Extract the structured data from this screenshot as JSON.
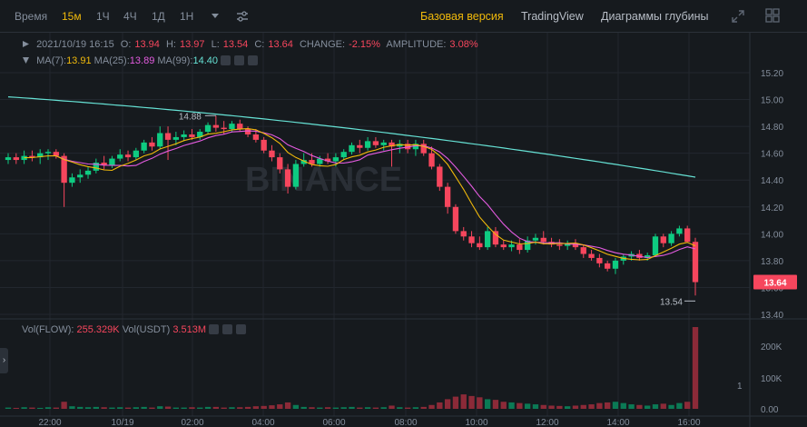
{
  "toolbar": {
    "time_label": "Время",
    "intervals": [
      "15м",
      "1Ч",
      "4Ч",
      "1Д",
      "1Н"
    ],
    "active_interval": "15м",
    "views": [
      "Базовая версия",
      "TradingView",
      "Диаграммы глубины"
    ],
    "active_view": "Базовая версия"
  },
  "ohlc": {
    "date": "2021/10/19 16:15",
    "o_label": "O:",
    "o": "13.94",
    "h_label": "H:",
    "h": "13.97",
    "l_label": "L:",
    "l": "13.54",
    "c_label": "C:",
    "c": "13.64",
    "change_label": "CHANGE:",
    "change": "-2.15%",
    "amp_label": "AMPLITUDE:",
    "amplitude": "3.08%"
  },
  "ma": {
    "ma7_label": "MA(7):",
    "ma7": "13.91",
    "ma25_label": "MA(25):",
    "ma25": "13.89",
    "ma99_label": "MA(99):",
    "ma99": "14.40"
  },
  "volume": {
    "flow_label": "Vol(FLOW):",
    "flow": "255.329K",
    "usdt_label": "Vol(USDT)",
    "usdt": "3.513M"
  },
  "watermark": "BINANCE",
  "price_axis": [
    "15.20",
    "15.00",
    "14.80",
    "14.60",
    "14.40",
    "14.20",
    "14.00",
    "13.80",
    "13.60",
    "13.40"
  ],
  "volume_axis": [
    "200K",
    "100K",
    "0.00"
  ],
  "time_axis": [
    "22:00",
    "10/19",
    "02:00",
    "04:00",
    "06:00",
    "08:00",
    "10:00",
    "12:00",
    "14:00",
    "16:00"
  ],
  "current_price": "13.64",
  "high_marker": "14.88",
  "low_marker": "13.54",
  "colors": {
    "up": "#0ecb81",
    "down": "#f6465d",
    "ma7": "#f0b90b",
    "ma25": "#e45be0",
    "ma99": "#66e2d5",
    "accent": "#f0b90b"
  },
  "chart_data": {
    "type": "candlestick",
    "ylim": [
      13.35,
      15.3
    ],
    "candles": [
      [
        14.55,
        14.6,
        14.52,
        14.57
      ],
      [
        14.57,
        14.6,
        14.52,
        14.55
      ],
      [
        14.55,
        14.62,
        14.52,
        14.58
      ],
      [
        14.58,
        14.62,
        14.54,
        14.57
      ],
      [
        14.57,
        14.63,
        14.52,
        14.6
      ],
      [
        14.6,
        14.63,
        14.55,
        14.61
      ],
      [
        14.61,
        14.63,
        14.56,
        14.58
      ],
      [
        14.58,
        14.6,
        14.2,
        14.38
      ],
      [
        14.38,
        14.45,
        14.35,
        14.42
      ],
      [
        14.42,
        14.48,
        14.38,
        14.44
      ],
      [
        14.44,
        14.5,
        14.41,
        14.47
      ],
      [
        14.47,
        14.56,
        14.45,
        14.53
      ],
      [
        14.53,
        14.58,
        14.48,
        14.51
      ],
      [
        14.51,
        14.58,
        14.49,
        14.56
      ],
      [
        14.56,
        14.63,
        14.54,
        14.59
      ],
      [
        14.59,
        14.62,
        14.54,
        14.57
      ],
      [
        14.57,
        14.64,
        14.55,
        14.62
      ],
      [
        14.62,
        14.7,
        14.6,
        14.68
      ],
      [
        14.68,
        14.72,
        14.62,
        14.65
      ],
      [
        14.65,
        14.8,
        14.63,
        14.75
      ],
      [
        14.75,
        14.8,
        14.55,
        14.7
      ],
      [
        14.7,
        14.76,
        14.66,
        14.72
      ],
      [
        14.72,
        14.77,
        14.69,
        14.74
      ],
      [
        14.74,
        14.78,
        14.7,
        14.72
      ],
      [
        14.72,
        14.78,
        14.7,
        14.76
      ],
      [
        14.76,
        14.83,
        14.74,
        14.81
      ],
      [
        14.81,
        14.88,
        14.76,
        14.79
      ],
      [
        14.79,
        14.84,
        14.74,
        14.78
      ],
      [
        14.78,
        14.84,
        14.76,
        14.82
      ],
      [
        14.82,
        14.85,
        14.76,
        14.78
      ],
      [
        14.78,
        14.8,
        14.72,
        14.74
      ],
      [
        14.74,
        14.78,
        14.68,
        14.7
      ],
      [
        14.7,
        14.72,
        14.6,
        14.62
      ],
      [
        14.62,
        14.66,
        14.54,
        14.57
      ],
      [
        14.57,
        14.6,
        14.45,
        14.48
      ],
      [
        14.48,
        14.52,
        14.3,
        14.35
      ],
      [
        14.35,
        14.55,
        14.33,
        14.52
      ],
      [
        14.52,
        14.6,
        14.5,
        14.55
      ],
      [
        14.55,
        14.6,
        14.5,
        14.52
      ],
      [
        14.52,
        14.58,
        14.5,
        14.56
      ],
      [
        14.56,
        14.6,
        14.52,
        14.54
      ],
      [
        14.54,
        14.6,
        14.5,
        14.57
      ],
      [
        14.57,
        14.63,
        14.55,
        14.61
      ],
      [
        14.61,
        14.68,
        14.59,
        14.66
      ],
      [
        14.66,
        14.7,
        14.6,
        14.64
      ],
      [
        14.64,
        14.72,
        14.62,
        14.69
      ],
      [
        14.69,
        14.72,
        14.64,
        14.66
      ],
      [
        14.66,
        14.7,
        14.62,
        14.68
      ],
      [
        14.68,
        14.7,
        14.5,
        14.65
      ],
      [
        14.65,
        14.7,
        14.6,
        14.67
      ],
      [
        14.67,
        14.7,
        14.6,
        14.63
      ],
      [
        14.63,
        14.7,
        14.58,
        14.67
      ],
      [
        14.67,
        14.7,
        14.58,
        14.6
      ],
      [
        14.6,
        14.65,
        14.48,
        14.5
      ],
      [
        14.5,
        14.52,
        14.32,
        14.35
      ],
      [
        14.35,
        14.38,
        14.15,
        14.2
      ],
      [
        14.2,
        14.22,
        14.0,
        14.02
      ],
      [
        14.02,
        14.05,
        13.95,
        13.98
      ],
      [
        13.98,
        14.02,
        13.9,
        13.93
      ],
      [
        13.93,
        13.98,
        13.88,
        13.9
      ],
      [
        13.9,
        14.05,
        13.88,
        14.02
      ],
      [
        14.02,
        14.05,
        13.9,
        13.92
      ],
      [
        13.92,
        13.95,
        13.88,
        13.9
      ],
      [
        13.9,
        13.95,
        13.87,
        13.92
      ],
      [
        13.92,
        13.96,
        13.85,
        13.88
      ],
      [
        13.88,
        13.98,
        13.86,
        13.95
      ],
      [
        13.95,
        14.0,
        13.92,
        13.97
      ],
      [
        13.97,
        14.02,
        13.92,
        13.94
      ],
      [
        13.94,
        13.97,
        13.9,
        13.92
      ],
      [
        13.92,
        13.96,
        13.88,
        13.91
      ],
      [
        13.91,
        13.95,
        13.88,
        13.93
      ],
      [
        13.93,
        13.96,
        13.88,
        13.9
      ],
      [
        13.9,
        13.92,
        13.82,
        13.85
      ],
      [
        13.85,
        13.88,
        13.8,
        13.82
      ],
      [
        13.82,
        13.85,
        13.75,
        13.78
      ],
      [
        13.78,
        13.8,
        13.72,
        13.74
      ],
      [
        13.74,
        13.82,
        13.7,
        13.8
      ],
      [
        13.8,
        13.85,
        13.77,
        13.83
      ],
      [
        13.83,
        13.87,
        13.8,
        13.85
      ],
      [
        13.85,
        13.88,
        13.8,
        13.82
      ],
      [
        13.82,
        13.86,
        13.8,
        13.84
      ],
      [
        13.84,
        14.0,
        13.83,
        13.98
      ],
      [
        13.98,
        14.0,
        13.9,
        13.93
      ],
      [
        13.93,
        14.02,
        13.91,
        14.0
      ],
      [
        14.0,
        14.06,
        13.98,
        14.04
      ],
      [
        14.04,
        14.06,
        13.94,
        13.94
      ],
      [
        13.94,
        13.97,
        13.54,
        13.64
      ]
    ],
    "volumes": [
      4,
      3,
      5,
      4,
      3,
      5,
      4,
      22,
      8,
      6,
      5,
      6,
      5,
      4,
      5,
      4,
      5,
      6,
      4,
      8,
      7,
      4,
      4,
      5,
      4,
      6,
      6,
      4,
      5,
      5,
      6,
      8,
      9,
      11,
      14,
      20,
      12,
      6,
      5,
      4,
      5,
      4,
      5,
      6,
      4,
      5,
      4,
      5,
      10,
      5,
      4,
      5,
      6,
      12,
      20,
      30,
      38,
      45,
      40,
      36,
      30,
      28,
      22,
      20,
      18,
      16,
      14,
      12,
      10,
      9,
      8,
      10,
      12,
      14,
      18,
      20,
      22,
      18,
      14,
      12,
      10,
      14,
      16,
      12,
      18,
      22,
      255
    ]
  }
}
